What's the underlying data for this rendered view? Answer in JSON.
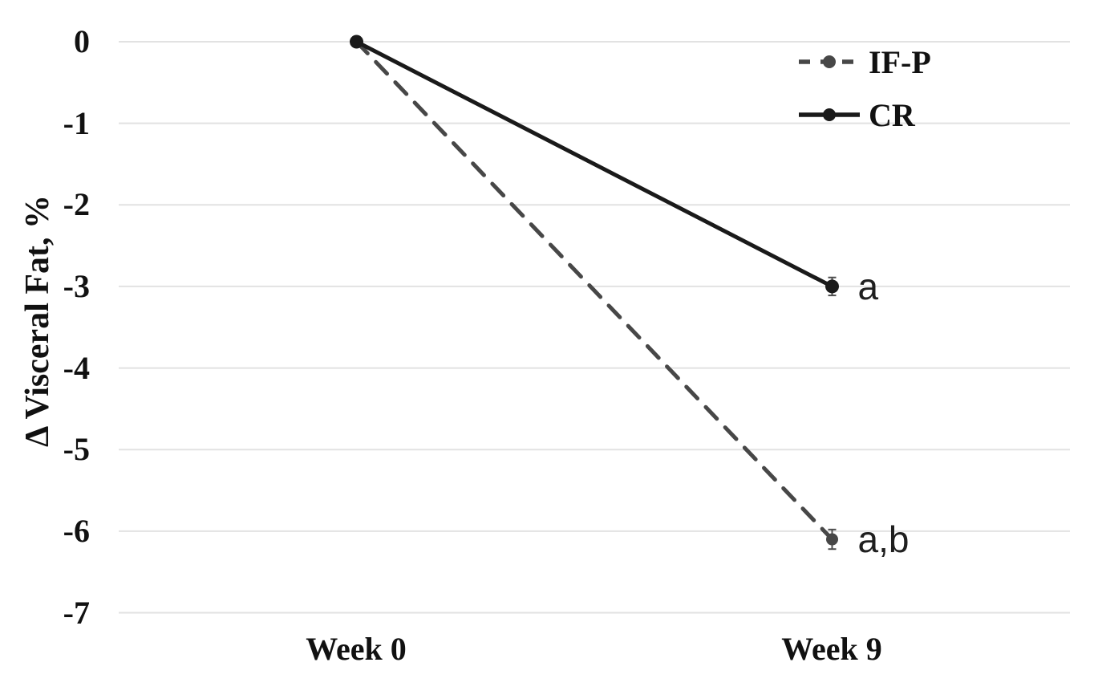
{
  "chart_data": {
    "type": "line",
    "categories": [
      "Week 0",
      "Week 9"
    ],
    "series": [
      {
        "name": "IF-P",
        "values": [
          0,
          -6.1
        ],
        "color": "#474747",
        "line_style": "dashed",
        "marker": "circle",
        "error_y": [
          0,
          0.12
        ],
        "endpoint_annotation": "a,b"
      },
      {
        "name": "CR",
        "values": [
          0,
          -3.0
        ],
        "color": "#1a1a1a",
        "line_style": "solid",
        "marker": "circle",
        "error_y": [
          0,
          0.11
        ],
        "endpoint_annotation": "a"
      }
    ],
    "ylabel": "Δ Visceral Fat, %",
    "ylim": [
      -7,
      0
    ],
    "yticks": [
      0,
      -1,
      -2,
      -3,
      -4,
      -5,
      -6,
      -7
    ],
    "ytick_labels": [
      "0",
      "-1",
      "-2",
      "-3",
      "-4",
      "-5",
      "-6",
      "-7"
    ],
    "grid": "horizontal-only",
    "gridline_color": "#e2e2e2",
    "error_bar_color": "#4d4d4d",
    "annotation_color": "#1f1f1f",
    "legend": {
      "position": "top-right"
    }
  }
}
